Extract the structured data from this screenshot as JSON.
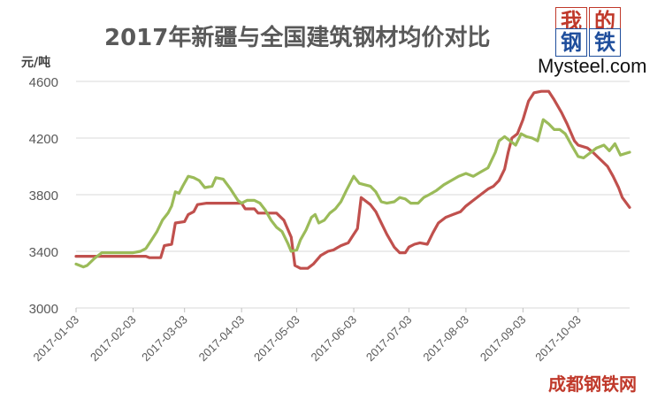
{
  "page_title": "2017年新疆与全国建筑钢材均价对比",
  "logo": {
    "chars": [
      "我",
      "的",
      "钢",
      "铁"
    ],
    "brand": "Mysteel.com"
  },
  "watermark": "成都钢铁网",
  "colors": {
    "national": "#C0504D",
    "xinjiang": "#9BBB59",
    "axis": "#D9D9D9",
    "text": "#595959"
  },
  "chart_data": {
    "type": "line",
    "title": "2017年新疆与全国建筑钢材均价对比",
    "ylabel": "元/吨",
    "xlabel": "",
    "ylim": [
      3000,
      4600
    ],
    "yticks": [
      3000,
      3400,
      3800,
      4200,
      4600
    ],
    "grid": true,
    "x_start": "2017-01-03",
    "x_end": "2017-10-31",
    "xticks": [
      "2017-01-03",
      "2017-02-03",
      "2017-03-03",
      "2017-04-03",
      "2017-05-03",
      "2017-06-03",
      "2017-07-03",
      "2017-08-03",
      "2017-09-03",
      "2017-10-03"
    ],
    "series": [
      {
        "name": "",
        "color": "#C0504D",
        "points": [
          [
            "2017-01-03",
            3365
          ],
          [
            "2017-02-10",
            3365
          ],
          [
            "2017-02-12",
            3355
          ],
          [
            "2017-02-18",
            3355
          ],
          [
            "2017-02-20",
            3440
          ],
          [
            "2017-02-24",
            3450
          ],
          [
            "2017-02-26",
            3600
          ],
          [
            "2017-03-03",
            3610
          ],
          [
            "2017-03-05",
            3660
          ],
          [
            "2017-03-08",
            3680
          ],
          [
            "2017-03-10",
            3730
          ],
          [
            "2017-03-15",
            3740
          ],
          [
            "2017-03-25",
            3740
          ],
          [
            "2017-04-03",
            3740
          ],
          [
            "2017-04-05",
            3700
          ],
          [
            "2017-04-10",
            3700
          ],
          [
            "2017-04-12",
            3670
          ],
          [
            "2017-04-22",
            3670
          ],
          [
            "2017-04-26",
            3620
          ],
          [
            "2017-04-30",
            3500
          ],
          [
            "2017-05-01",
            3400
          ],
          [
            "2017-05-02",
            3300
          ],
          [
            "2017-05-05",
            3280
          ],
          [
            "2017-05-09",
            3280
          ],
          [
            "2017-05-12",
            3310
          ],
          [
            "2017-05-16",
            3370
          ],
          [
            "2017-05-20",
            3400
          ],
          [
            "2017-05-23",
            3410
          ],
          [
            "2017-05-27",
            3440
          ],
          [
            "2017-05-31",
            3460
          ],
          [
            "2017-06-03",
            3520
          ],
          [
            "2017-06-05",
            3560
          ],
          [
            "2017-06-07",
            3780
          ],
          [
            "2017-06-09",
            3760
          ],
          [
            "2017-06-12",
            3730
          ],
          [
            "2017-06-15",
            3680
          ],
          [
            "2017-06-18",
            3600
          ],
          [
            "2017-06-21",
            3520
          ],
          [
            "2017-06-25",
            3430
          ],
          [
            "2017-06-28",
            3390
          ],
          [
            "2017-07-01",
            3390
          ],
          [
            "2017-07-03",
            3430
          ],
          [
            "2017-07-06",
            3450
          ],
          [
            "2017-07-09",
            3460
          ],
          [
            "2017-07-13",
            3450
          ],
          [
            "2017-07-16",
            3530
          ],
          [
            "2017-07-19",
            3600
          ],
          [
            "2017-07-23",
            3640
          ],
          [
            "2017-07-27",
            3660
          ],
          [
            "2017-07-31",
            3680
          ],
          [
            "2017-08-03",
            3720
          ],
          [
            "2017-08-07",
            3760
          ],
          [
            "2017-08-11",
            3800
          ],
          [
            "2017-08-15",
            3840
          ],
          [
            "2017-08-18",
            3860
          ],
          [
            "2017-08-21",
            3900
          ],
          [
            "2017-08-24",
            3980
          ],
          [
            "2017-08-26",
            4100
          ],
          [
            "2017-08-28",
            4200
          ],
          [
            "2017-08-31",
            4230
          ],
          [
            "2017-09-03",
            4330
          ],
          [
            "2017-09-06",
            4460
          ],
          [
            "2017-09-09",
            4520
          ],
          [
            "2017-09-13",
            4530
          ],
          [
            "2017-09-17",
            4530
          ],
          [
            "2017-09-20",
            4470
          ],
          [
            "2017-09-24",
            4380
          ],
          [
            "2017-09-27",
            4300
          ],
          [
            "2017-10-01",
            4180
          ],
          [
            "2017-10-03",
            4150
          ],
          [
            "2017-10-08",
            4130
          ],
          [
            "2017-10-11",
            4100
          ],
          [
            "2017-10-15",
            4050
          ],
          [
            "2017-10-19",
            4000
          ],
          [
            "2017-10-22",
            3930
          ],
          [
            "2017-10-25",
            3850
          ],
          [
            "2017-10-27",
            3780
          ],
          [
            "2017-10-31",
            3710
          ]
        ]
      },
      {
        "name": "",
        "color": "#9BBB59",
        "points": [
          [
            "2017-01-03",
            3310
          ],
          [
            "2017-01-07",
            3290
          ],
          [
            "2017-01-09",
            3300
          ],
          [
            "2017-01-13",
            3350
          ],
          [
            "2017-01-17",
            3390
          ],
          [
            "2017-01-21",
            3390
          ],
          [
            "2017-02-03",
            3390
          ],
          [
            "2017-02-07",
            3400
          ],
          [
            "2017-02-10",
            3420
          ],
          [
            "2017-02-13",
            3480
          ],
          [
            "2017-02-16",
            3540
          ],
          [
            "2017-02-19",
            3620
          ],
          [
            "2017-02-22",
            3670
          ],
          [
            "2017-02-24",
            3720
          ],
          [
            "2017-02-26",
            3820
          ],
          [
            "2017-02-28",
            3810
          ],
          [
            "2017-03-02",
            3860
          ],
          [
            "2017-03-05",
            3930
          ],
          [
            "2017-03-08",
            3920
          ],
          [
            "2017-03-11",
            3900
          ],
          [
            "2017-03-14",
            3850
          ],
          [
            "2017-03-18",
            3860
          ],
          [
            "2017-03-20",
            3920
          ],
          [
            "2017-03-24",
            3910
          ],
          [
            "2017-03-28",
            3840
          ],
          [
            "2017-04-01",
            3760
          ],
          [
            "2017-04-03",
            3740
          ],
          [
            "2017-04-06",
            3760
          ],
          [
            "2017-04-10",
            3760
          ],
          [
            "2017-04-13",
            3740
          ],
          [
            "2017-04-16",
            3690
          ],
          [
            "2017-04-19",
            3620
          ],
          [
            "2017-04-22",
            3570
          ],
          [
            "2017-04-25",
            3540
          ],
          [
            "2017-04-28",
            3460
          ],
          [
            "2017-04-30",
            3400
          ],
          [
            "2017-05-03",
            3410
          ],
          [
            "2017-05-05",
            3480
          ],
          [
            "2017-05-08",
            3550
          ],
          [
            "2017-05-11",
            3640
          ],
          [
            "2017-05-13",
            3660
          ],
          [
            "2017-05-15",
            3600
          ],
          [
            "2017-05-18",
            3620
          ],
          [
            "2017-05-21",
            3670
          ],
          [
            "2017-05-24",
            3700
          ],
          [
            "2017-05-27",
            3750
          ],
          [
            "2017-05-30",
            3830
          ],
          [
            "2017-06-03",
            3930
          ],
          [
            "2017-06-06",
            3880
          ],
          [
            "2017-06-09",
            3870
          ],
          [
            "2017-06-12",
            3860
          ],
          [
            "2017-06-15",
            3820
          ],
          [
            "2017-06-18",
            3750
          ],
          [
            "2017-06-21",
            3740
          ],
          [
            "2017-06-25",
            3750
          ],
          [
            "2017-06-28",
            3780
          ],
          [
            "2017-07-01",
            3770
          ],
          [
            "2017-07-04",
            3740
          ],
          [
            "2017-07-08",
            3740
          ],
          [
            "2017-07-11",
            3780
          ],
          [
            "2017-07-14",
            3800
          ],
          [
            "2017-07-18",
            3830
          ],
          [
            "2017-07-22",
            3870
          ],
          [
            "2017-07-26",
            3900
          ],
          [
            "2017-07-30",
            3930
          ],
          [
            "2017-08-03",
            3950
          ],
          [
            "2017-08-07",
            3930
          ],
          [
            "2017-08-11",
            3960
          ],
          [
            "2017-08-15",
            3990
          ],
          [
            "2017-08-19",
            4100
          ],
          [
            "2017-08-21",
            4180
          ],
          [
            "2017-08-24",
            4210
          ],
          [
            "2017-08-27",
            4180
          ],
          [
            "2017-08-30",
            4150
          ],
          [
            "2017-09-02",
            4230
          ],
          [
            "2017-09-05",
            4210
          ],
          [
            "2017-09-08",
            4200
          ],
          [
            "2017-09-11",
            4180
          ],
          [
            "2017-09-14",
            4330
          ],
          [
            "2017-09-17",
            4300
          ],
          [
            "2017-09-20",
            4260
          ],
          [
            "2017-09-23",
            4260
          ],
          [
            "2017-09-26",
            4230
          ],
          [
            "2017-09-29",
            4160
          ],
          [
            "2017-10-03",
            4070
          ],
          [
            "2017-10-06",
            4060
          ],
          [
            "2017-10-09",
            4090
          ],
          [
            "2017-10-13",
            4130
          ],
          [
            "2017-10-17",
            4150
          ],
          [
            "2017-10-20",
            4110
          ],
          [
            "2017-10-23",
            4160
          ],
          [
            "2017-10-26",
            4080
          ],
          [
            "2017-10-31",
            4100
          ]
        ]
      }
    ]
  }
}
